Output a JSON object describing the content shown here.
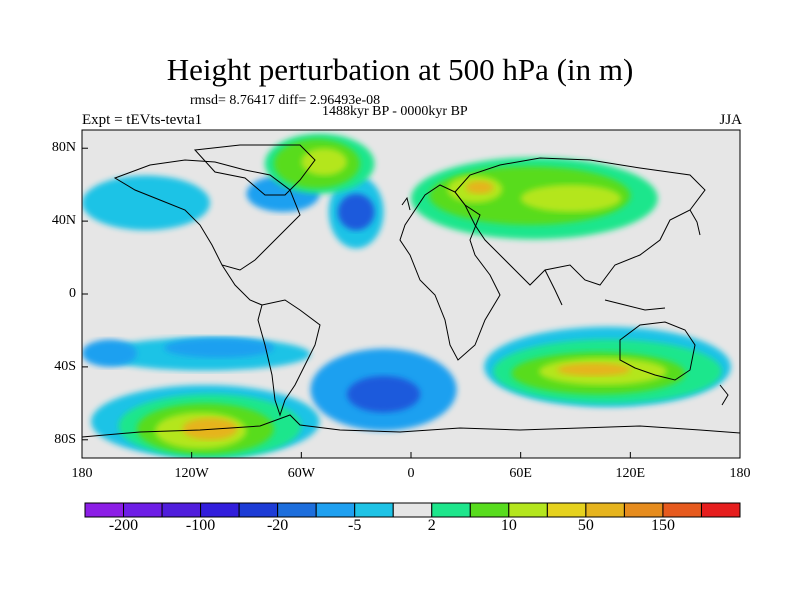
{
  "header": {
    "title": "Height perturbation at 500 hPa (in m)",
    "stats": "rmsd= 8.76417 diff= 2.96493e-08",
    "period": "1488kyr BP - 0000kyr BP",
    "experiment": "Expt = tEVts-tevta1",
    "season": "JJA"
  },
  "map": {
    "projection": "equirectangular",
    "lon_range": [
      -180,
      180
    ],
    "lat_range": [
      -90,
      90
    ],
    "x_tick_labels": [
      {
        "lon": -180,
        "label": "180"
      },
      {
        "lon": -120,
        "label": "120W"
      },
      {
        "lon": -60,
        "label": "60W"
      },
      {
        "lon": 0,
        "label": "0"
      },
      {
        "lon": 60,
        "label": "60E"
      },
      {
        "lon": 120,
        "label": "120E"
      },
      {
        "lon": 180,
        "label": "180"
      }
    ],
    "y_tick_labels": [
      {
        "lat": 80,
        "label": "80N"
      },
      {
        "lat": 40,
        "label": "40N"
      },
      {
        "lat": 0,
        "label": "0"
      },
      {
        "lat": -40,
        "label": "40S"
      },
      {
        "lat": -80,
        "label": "80S"
      }
    ],
    "fill_levels": [
      {
        "lon": [
          -180,
          180
        ],
        "lat": [
          -90,
          90
        ],
        "color": "#e6e6e6"
      },
      {
        "lon": [
          -175,
          -50
        ],
        "lat": [
          -90,
          -50
        ],
        "color": "#1fc3e6"
      },
      {
        "lon": [
          40,
          175
        ],
        "lat": [
          -62,
          -18
        ],
        "color": "#1fc3e6"
      },
      {
        "lon": [
          -170,
          -55
        ],
        "lat": [
          -42,
          -24
        ],
        "color": "#1fc3e6"
      },
      {
        "lon": [
          -135,
          -75
        ],
        "lat": [
          -35,
          -24
        ],
        "color": "#1fa0f0"
      },
      {
        "lon": [
          -180,
          -110
        ],
        "lat": [
          35,
          65
        ],
        "color": "#1fc3e6"
      },
      {
        "lon": [
          -90,
          -50
        ],
        "lat": [
          45,
          65
        ],
        "color": "#1fa0f0"
      },
      {
        "lon": [
          -55,
          25
        ],
        "lat": [
          -75,
          -30
        ],
        "color": "#1fa0f0"
      },
      {
        "lon": [
          -35,
          5
        ],
        "lat": [
          -65,
          -45
        ],
        "color": "#1d5adc"
      },
      {
        "lon": [
          -45,
          -15
        ],
        "lat": [
          25,
          65
        ],
        "color": "#1fc3e6"
      },
      {
        "lon": [
          -40,
          -20
        ],
        "lat": [
          35,
          55
        ],
        "color": "#1d5adc"
      },
      {
        "lon": [
          -160,
          -60
        ],
        "lat": [
          -90,
          -55
        ],
        "color": "#1ee68c"
      },
      {
        "lon": [
          -150,
          -75
        ],
        "lat": [
          -88,
          -60
        ],
        "color": "#58dc1e"
      },
      {
        "lon": [
          -140,
          -90
        ],
        "lat": [
          -85,
          -65
        ],
        "color": "#b4e61e"
      },
      {
        "lon": [
          -125,
          -95
        ],
        "lat": [
          -80,
          -68
        ],
        "color": "#e6b41e"
      },
      {
        "lon": [
          45,
          170
        ],
        "lat": [
          -60,
          -25
        ],
        "color": "#1ee68c"
      },
      {
        "lon": [
          55,
          150
        ],
        "lat": [
          -55,
          -32
        ],
        "color": "#58dc1e"
      },
      {
        "lon": [
          70,
          140
        ],
        "lat": [
          -50,
          -35
        ],
        "color": "#b4e61e"
      },
      {
        "lon": [
          80,
          120
        ],
        "lat": [
          -45,
          -38
        ],
        "color": "#e6b41e"
      },
      {
        "lon": [
          -80,
          -20
        ],
        "lat": [
          55,
          88
        ],
        "color": "#1ee68c"
      },
      {
        "lon": [
          -75,
          -28
        ],
        "lat": [
          58,
          85
        ],
        "color": "#58dc1e"
      },
      {
        "lon": [
          -60,
          -35
        ],
        "lat": [
          65,
          80
        ],
        "color": "#b4e61e"
      },
      {
        "lon": [
          0,
          135
        ],
        "lat": [
          30,
          75
        ],
        "color": "#1ee68c"
      },
      {
        "lon": [
          10,
          120
        ],
        "lat": [
          38,
          70
        ],
        "color": "#58dc1e"
      },
      {
        "lon": [
          20,
          50
        ],
        "lat": [
          50,
          65
        ],
        "color": "#b4e61e"
      },
      {
        "lon": [
          30,
          45
        ],
        "lat": [
          55,
          62
        ],
        "color": "#e6b41e"
      },
      {
        "lon": [
          60,
          115
        ],
        "lat": [
          45,
          60
        ],
        "color": "#b4e61e"
      },
      {
        "lon": [
          -180,
          -150
        ],
        "lat": [
          -40,
          -25
        ],
        "color": "#1fa0f0"
      }
    ]
  },
  "colorbar": {
    "colors": [
      "#8c1ee6",
      "#6e1ee6",
      "#501edc",
      "#321edc",
      "#1d3cd6",
      "#1d6edc",
      "#1fa0f0",
      "#1fc3e6",
      "#e6e6e6",
      "#1ee68c",
      "#58dc1e",
      "#b4e61e",
      "#e6d21e",
      "#e6b41e",
      "#e68c1e",
      "#e65a1e",
      "#e61e1e"
    ],
    "labels": [
      "-200",
      "-100",
      "-20",
      "-5",
      "2",
      "10",
      "50",
      "150"
    ]
  }
}
